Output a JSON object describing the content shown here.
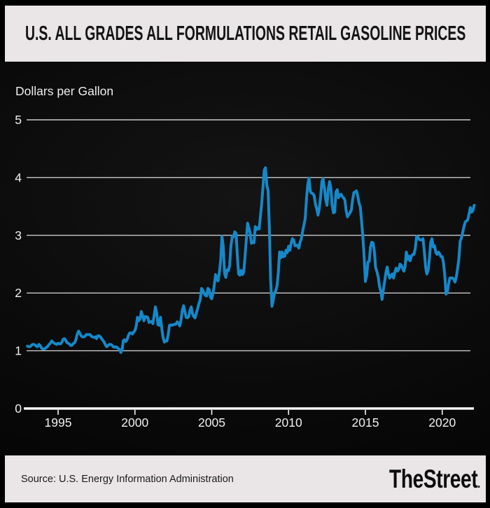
{
  "header": {
    "title": "U.S. ALL GRADES ALL FORMULATIONS RETAIL GASOLINE PRICES",
    "background": "#eae6e7",
    "text_color": "#141414"
  },
  "footer": {
    "source": "Source: U.S. Energy Information Administration",
    "brand": "TheStreet",
    "brand_suffix": ".",
    "background": "#eae6e7"
  },
  "chart_data": {
    "type": "line",
    "title": "U.S. All Grades All Formulations Retail Gasoline Prices",
    "ylabel": "Dollars per Gallon",
    "xlabel": "",
    "ylim": [
      0,
      5
    ],
    "xlim": [
      1993.0,
      2022.2
    ],
    "y_ticks": [
      0,
      1,
      2,
      3,
      4,
      5
    ],
    "x_ticks": [
      1995,
      2000,
      2005,
      2010,
      2015,
      2020
    ],
    "grid": true,
    "legend": "none",
    "background": "#0a0a0a",
    "line_color": "#1588c9",
    "grid_color": "#c9c9c9",
    "axis_color": "#f5f5f5",
    "label_color": "#f0f0f0",
    "x_start_year": 1993,
    "points_per_year": 12,
    "series": [
      {
        "name": "U.S. all grades all formulations retail gasoline price ($/gal, monthly)",
        "values": [
          1.08,
          1.07,
          1.07,
          1.09,
          1.11,
          1.11,
          1.1,
          1.08,
          1.07,
          1.11,
          1.09,
          1.05,
          1.03,
          1.03,
          1.04,
          1.06,
          1.08,
          1.11,
          1.13,
          1.17,
          1.15,
          1.13,
          1.12,
          1.11,
          1.13,
          1.12,
          1.12,
          1.15,
          1.2,
          1.21,
          1.18,
          1.14,
          1.13,
          1.11,
          1.09,
          1.1,
          1.13,
          1.14,
          1.2,
          1.29,
          1.34,
          1.3,
          1.26,
          1.24,
          1.24,
          1.25,
          1.28,
          1.28,
          1.28,
          1.28,
          1.25,
          1.24,
          1.23,
          1.24,
          1.21,
          1.26,
          1.26,
          1.24,
          1.21,
          1.18,
          1.15,
          1.1,
          1.07,
          1.09,
          1.11,
          1.11,
          1.1,
          1.07,
          1.06,
          1.07,
          1.06,
          1.04,
          1.02,
          0.97,
          1.02,
          1.18,
          1.19,
          1.16,
          1.2,
          1.27,
          1.31,
          1.31,
          1.29,
          1.32,
          1.35,
          1.43,
          1.58,
          1.52,
          1.55,
          1.68,
          1.61,
          1.52,
          1.59,
          1.59,
          1.58,
          1.49,
          1.5,
          1.51,
          1.47,
          1.61,
          1.76,
          1.66,
          1.45,
          1.44,
          1.58,
          1.38,
          1.23,
          1.15,
          1.17,
          1.17,
          1.28,
          1.44,
          1.45,
          1.44,
          1.45,
          1.46,
          1.46,
          1.5,
          1.48,
          1.43,
          1.53,
          1.7,
          1.78,
          1.68,
          1.58,
          1.57,
          1.59,
          1.7,
          1.76,
          1.64,
          1.59,
          1.57,
          1.65,
          1.73,
          1.82,
          1.88,
          2.08,
          2.05,
          1.99,
          1.96,
          1.95,
          2.08,
          2.06,
          1.93,
          1.9,
          1.99,
          2.14,
          2.32,
          2.24,
          2.21,
          2.37,
          2.57,
          2.98,
          2.8,
          2.34,
          2.27,
          2.4,
          2.39,
          2.48,
          2.82,
          2.98,
          2.97,
          3.06,
          3.03,
          2.64,
          2.33,
          2.31,
          2.39,
          2.32,
          2.36,
          2.64,
          2.93,
          3.21,
          3.13,
          3.04,
          2.86,
          2.88,
          2.87,
          3.15,
          3.1,
          3.13,
          3.11,
          3.32,
          3.54,
          3.84,
          4.13,
          4.17,
          3.86,
          3.78,
          3.13,
          2.23,
          1.77,
          1.87,
          2.0,
          2.04,
          2.13,
          2.35,
          2.71,
          2.61,
          2.71,
          2.63,
          2.64,
          2.74,
          2.7,
          2.81,
          2.74,
          2.86,
          2.94,
          2.92,
          2.82,
          2.82,
          2.83,
          2.78,
          2.88,
          2.94,
          3.07,
          3.18,
          3.29,
          3.64,
          3.88,
          3.99,
          3.76,
          3.73,
          3.72,
          3.69,
          3.53,
          3.46,
          3.35,
          3.46,
          3.66,
          3.93,
          3.98,
          3.81,
          3.62,
          3.52,
          3.8,
          3.93,
          3.83,
          3.53,
          3.39,
          3.4,
          3.75,
          3.79,
          3.65,
          3.7,
          3.71,
          3.67,
          3.65,
          3.61,
          3.42,
          3.32,
          3.36,
          3.39,
          3.44,
          3.61,
          3.74,
          3.75,
          3.77,
          3.69,
          3.56,
          3.49,
          3.25,
          2.99,
          2.63,
          2.2,
          2.3,
          2.54,
          2.55,
          2.8,
          2.88,
          2.87,
          2.72,
          2.44,
          2.37,
          2.28,
          2.12,
          2.03,
          1.89,
          2.05,
          2.19,
          2.35,
          2.45,
          2.33,
          2.26,
          2.3,
          2.33,
          2.26,
          2.36,
          2.43,
          2.38,
          2.41,
          2.5,
          2.48,
          2.43,
          2.38,
          2.46,
          2.71,
          2.58,
          2.64,
          2.56,
          2.64,
          2.67,
          2.67,
          2.78,
          2.98,
          2.97,
          2.93,
          2.92,
          2.92,
          2.94,
          2.73,
          2.45,
          2.33,
          2.39,
          2.6,
          2.88,
          2.94,
          2.8,
          2.82,
          2.7,
          2.67,
          2.71,
          2.68,
          2.63,
          2.63,
          2.52,
          2.31,
          1.98,
          2.02,
          2.16,
          2.26,
          2.26,
          2.26,
          2.24,
          2.19,
          2.28,
          2.42,
          2.59,
          2.9,
          2.95,
          3.05,
          3.15,
          3.23,
          3.25,
          3.27,
          3.38,
          3.48,
          3.4,
          3.43,
          3.52
        ]
      }
    ]
  }
}
